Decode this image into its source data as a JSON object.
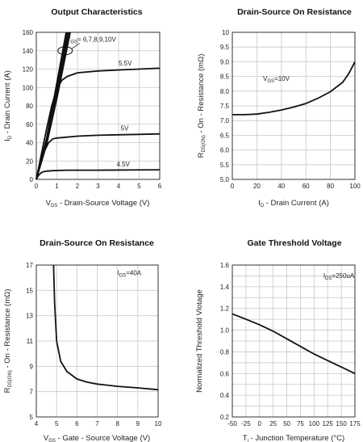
{
  "chart_data": [
    {
      "type": "line",
      "title": "Output Characteristics",
      "xlabel": "V<sub>DS</sub> - Drain-Source Voltage (V)",
      "xlabel_parts": [
        "V",
        "DS",
        " - Drain-Source Voltage (V)"
      ],
      "ylabel_parts": [
        "I",
        "D",
        " - Drain Current (A)"
      ],
      "xlim": [
        0,
        6
      ],
      "ylim": [
        0,
        160
      ],
      "xticks": [
        0,
        1,
        2,
        3,
        4,
        5,
        6
      ],
      "yticks": [
        0,
        20,
        40,
        60,
        80,
        100,
        120,
        140,
        160
      ],
      "grid": true,
      "series": [
        {
          "name": "6,7,8,9,10V (a)",
          "x": [
            0,
            0.5,
            1.0,
            1.45
          ],
          "y": [
            0,
            45,
            105,
            160
          ]
        },
        {
          "name": "6,7,8,9,10V (b)",
          "x": [
            0,
            0.5,
            1.0,
            1.5
          ],
          "y": [
            0,
            43,
            100,
            160
          ]
        },
        {
          "name": "6,7,8,9,10V (c)",
          "x": [
            0,
            0.5,
            1.0,
            1.55
          ],
          "y": [
            0,
            42,
            96,
            160
          ]
        },
        {
          "name": "6,7,8,9,10V (d)",
          "x": [
            0,
            0.5,
            1.0,
            1.6
          ],
          "y": [
            0,
            40,
            92,
            160
          ]
        },
        {
          "name": "6,7,8,9,10V (e)",
          "x": [
            0,
            0.5,
            1.0,
            1.65
          ],
          "y": [
            0,
            38,
            88,
            160
          ]
        },
        {
          "name": "5.5V",
          "x": [
            0,
            0.25,
            0.5,
            0.75,
            1.0,
            1.25,
            1.5,
            2.0,
            3.0,
            4.0,
            5.0,
            6.0
          ],
          "y": [
            0,
            28,
            55,
            80,
            99,
            108,
            112,
            116,
            118,
            119,
            120,
            121
          ]
        },
        {
          "name": "5V",
          "x": [
            0,
            0.2,
            0.4,
            0.6,
            0.8,
            1.0,
            1.5,
            2.0,
            3.0,
            4.0,
            5.0,
            6.0
          ],
          "y": [
            0,
            17,
            31,
            40,
            44,
            45,
            46,
            47,
            48,
            48.5,
            49,
            49.5
          ]
        },
        {
          "name": "4.5V",
          "x": [
            0,
            0.1,
            0.2,
            0.3,
            0.5,
            0.8,
            1.5,
            3.0,
            6.0
          ],
          "y": [
            0,
            4,
            6.5,
            8,
            9,
            9.5,
            10,
            10,
            10.5
          ]
        }
      ],
      "annotations": {
        "vgs": {
          "prefix": "V",
          "sub": "GS",
          "text": "= 6,7,8,9,10V"
        },
        "v55": "5.5V",
        "v5": "5V",
        "v45": "4.5V"
      }
    },
    {
      "type": "line",
      "title": "Drain-Source On Resistance",
      "xlabel_parts": [
        "I",
        "D",
        " - Drain Current (A)"
      ],
      "ylabel_parts": [
        "R",
        "DS(ON)",
        " - On - Resistance (mΩ)"
      ],
      "xlim": [
        0,
        100
      ],
      "ylim": [
        5.0,
        10
      ],
      "xticks": [
        0,
        20,
        40,
        60,
        80,
        100
      ],
      "yticks": [
        5.0,
        5.5,
        6.0,
        6.5,
        7.0,
        7.5,
        8.0,
        8.5,
        9.0,
        9.5,
        10
      ],
      "ytick_labels": [
        "5.0",
        "5.5",
        "6.0",
        "6.5",
        "7.0",
        "7.5",
        "8.0",
        "8.5",
        "9.0",
        "9.5",
        "10"
      ],
      "grid": true,
      "series": [
        {
          "name": "10V",
          "x": [
            0,
            10,
            20,
            30,
            40,
            50,
            60,
            70,
            80,
            90,
            95,
            100
          ],
          "y": [
            7.2,
            7.2,
            7.22,
            7.28,
            7.36,
            7.46,
            7.58,
            7.76,
            7.98,
            8.3,
            8.6,
            9.0
          ]
        }
      ],
      "annotations": {
        "vgs": {
          "prefix": "V",
          "sub": "GS",
          "text": "=10V"
        }
      }
    },
    {
      "type": "line",
      "title": "Drain-Source On Resistance",
      "xlabel_parts": [
        "V",
        "GS",
        " - Gate - Source Voltage (V)"
      ],
      "ylabel_parts": [
        "R",
        "DS(ON)",
        " - On - Resistance (mΩ)"
      ],
      "xlim": [
        4,
        10
      ],
      "ylim": [
        5,
        17
      ],
      "xticks": [
        4,
        5,
        6,
        7,
        8,
        9,
        10
      ],
      "yticks": [
        5,
        7,
        9,
        11,
        13,
        15,
        17
      ],
      "grid": true,
      "series": [
        {
          "name": "40A",
          "x": [
            4.85,
            4.9,
            5.0,
            5.2,
            5.5,
            6.0,
            6.5,
            7.0,
            8.0,
            9.0,
            10.0
          ],
          "y": [
            17,
            14,
            11,
            9.4,
            8.6,
            8.0,
            7.75,
            7.6,
            7.42,
            7.3,
            7.15
          ]
        }
      ],
      "annotations": {
        "ids": {
          "prefix": "I",
          "sub": "DS",
          "text": "=40A"
        }
      }
    },
    {
      "type": "line",
      "title": "Gate Threshold Voltage",
      "xlabel_parts": [
        "T",
        "j",
        " - Junction Temperature (°C)"
      ],
      "ylabel": "Normalized Threshold Vlotage",
      "xlim": [
        -50,
        175
      ],
      "ylim": [
        0.2,
        1.6
      ],
      "xticks": [
        -50,
        -25,
        0,
        25,
        50,
        75,
        100,
        125,
        150,
        175
      ],
      "yticks": [
        0.2,
        0.4,
        0.6,
        0.8,
        1.0,
        1.2,
        1.4,
        1.6
      ],
      "ytick_labels": [
        "0.2",
        "0.4",
        "0.6",
        "0.8",
        "1.0",
        "1.2",
        "1.4",
        "1.6"
      ],
      "grid": true,
      "series": [
        {
          "name": "250uA",
          "x": [
            -50,
            -25,
            0,
            25,
            50,
            75,
            100,
            125,
            150,
            175
          ],
          "y": [
            1.15,
            1.1,
            1.05,
            0.99,
            0.92,
            0.85,
            0.78,
            0.72,
            0.66,
            0.6
          ]
        }
      ],
      "annotations": {
        "ids": {
          "prefix": "I",
          "sub": "DS",
          "text": "=250uA"
        }
      }
    }
  ]
}
